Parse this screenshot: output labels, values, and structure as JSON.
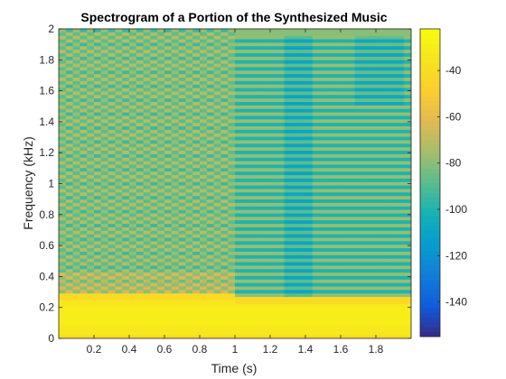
{
  "chart_data": {
    "type": "heatmap",
    "title": "Spectrogram of a Portion of the Synthesized Music",
    "xlabel": "Time (s)",
    "ylabel": "Frequency (kHz)",
    "xlim": [
      0,
      2
    ],
    "ylim": [
      0,
      2
    ],
    "x_ticks": [
      0.2,
      0.4,
      0.6,
      0.8,
      1,
      1.2,
      1.4,
      1.6,
      1.8
    ],
    "x_tick_labels": [
      "0.2",
      "0.4",
      "0.6",
      "0.8",
      "1",
      "1.2",
      "1.4",
      "1.6",
      "1.8"
    ],
    "y_ticks": [
      0,
      0.2,
      0.4,
      0.6,
      0.8,
      1,
      1.2,
      1.4,
      1.6,
      1.8,
      2
    ],
    "y_tick_labels": [
      "0",
      "0.2",
      "0.4",
      "0.6",
      "0.8",
      "1",
      "1.2",
      "1.4",
      "1.6",
      "1.8",
      "2"
    ],
    "colormap": "parula",
    "color_limits": [
      -155,
      -22
    ],
    "colorbar_ticks": [
      -40,
      -60,
      -80,
      -100,
      -120,
      -140
    ],
    "colorbar_tick_labels": [
      "-40",
      "-60",
      "-80",
      "-100",
      "-120",
      "-140"
    ],
    "segments": [
      {
        "t_start": 0,
        "t_end": 1,
        "low_freq_band_khz": [
          0,
          0.3
        ],
        "low_band_level": -30,
        "upper_level_mean": -78,
        "pattern": "checkered harmonics"
      },
      {
        "t_start": 1,
        "t_end": 2,
        "low_freq_band_khz": [
          0,
          0.28
        ],
        "low_band_level": -30,
        "upper_level_mean": -85,
        "pattern": "horizontal harmonic stripes"
      }
    ]
  }
}
